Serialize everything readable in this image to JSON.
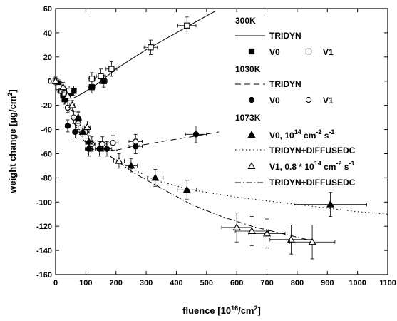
{
  "chart_data": {
    "type": "scatter",
    "title": "",
    "xlabel": "fluence [10^16/cm^2]",
    "ylabel": "weight change [µg/cm^2]",
    "xlim": [
      0,
      1100
    ],
    "ylim": [
      -160,
      60
    ],
    "xticks": [
      0,
      100,
      200,
      300,
      400,
      500,
      600,
      700,
      800,
      900,
      1000,
      1100
    ],
    "yticks": [
      -160,
      -140,
      -120,
      -100,
      -80,
      -60,
      -40,
      -20,
      0,
      20,
      40,
      60
    ],
    "grid": false,
    "legend_position": "right",
    "legend_groups": [
      {
        "heading": "300K",
        "entries": [
          "TRIDYN",
          "V0",
          "V1"
        ]
      },
      {
        "heading": "1030K",
        "entries": [
          "TRIDYN",
          "V0",
          "V1"
        ]
      },
      {
        "heading": "1073K",
        "entries": [
          "V0, 10^14 cm^-2 s^-1",
          "TRIDYN+DIFFUSEDC",
          "V1, 0.8 * 10^14 cm^-2 s^-1",
          "TRIDYN+DIFFUSEDC"
        ]
      }
    ],
    "series": [
      {
        "name": "300K TRIDYN",
        "kind": "line",
        "style": "solid",
        "color": "#000000",
        "points": [
          [
            0,
            0
          ],
          [
            20,
            -8
          ],
          [
            40,
            -14
          ],
          [
            60,
            -14
          ],
          [
            90,
            -10
          ],
          [
            140,
            -2
          ],
          [
            200,
            10
          ],
          [
            300,
            26
          ],
          [
            400,
            40
          ],
          [
            500,
            54
          ],
          [
            530,
            58
          ]
        ]
      },
      {
        "name": "300K V0",
        "kind": "markers",
        "marker": "square-filled",
        "color": "#000000",
        "points": [
          [
            10,
            -2,
            5,
            3
          ],
          [
            20,
            -8,
            6,
            4
          ],
          [
            25,
            -12,
            6,
            4
          ],
          [
            30,
            -15,
            6,
            4
          ],
          [
            35,
            -12,
            6,
            4
          ],
          [
            40,
            -10,
            6,
            4
          ],
          [
            50,
            -10,
            7,
            4
          ],
          [
            60,
            -8,
            8,
            4
          ],
          [
            120,
            -5,
            10,
            5
          ],
          [
            160,
            0,
            12,
            5
          ]
        ]
      },
      {
        "name": "300K V1",
        "kind": "markers",
        "marker": "square-open",
        "color": "#000000",
        "points": [
          [
            0,
            0,
            5,
            3
          ],
          [
            10,
            -5,
            6,
            4
          ],
          [
            20,
            -8,
            6,
            4
          ],
          [
            30,
            -10,
            6,
            4
          ],
          [
            45,
            -8,
            7,
            4
          ],
          [
            120,
            2,
            12,
            5
          ],
          [
            150,
            4,
            15,
            6
          ],
          [
            185,
            10,
            18,
            6
          ],
          [
            315,
            28,
            22,
            6
          ],
          [
            435,
            46,
            30,
            7
          ]
        ]
      },
      {
        "name": "1030K TRIDYN",
        "kind": "line",
        "style": "dashed",
        "color": "#000000",
        "points": [
          [
            0,
            0
          ],
          [
            20,
            -10
          ],
          [
            40,
            -22
          ],
          [
            60,
            -34
          ],
          [
            90,
            -48
          ],
          [
            120,
            -56
          ],
          [
            160,
            -58
          ],
          [
            200,
            -57
          ],
          [
            260,
            -54
          ],
          [
            350,
            -50
          ],
          [
            450,
            -46
          ],
          [
            540,
            -42
          ]
        ]
      },
      {
        "name": "1030K V0",
        "kind": "markers",
        "marker": "circle-filled",
        "color": "#000000",
        "points": [
          [
            40,
            -37,
            8,
            5
          ],
          [
            65,
            -42,
            9,
            5
          ],
          [
            75,
            -31,
            9,
            5
          ],
          [
            110,
            -56,
            12,
            6
          ],
          [
            145,
            -56,
            14,
            6
          ],
          [
            170,
            -56,
            16,
            6
          ],
          [
            265,
            -54,
            22,
            6
          ],
          [
            465,
            -44,
            35,
            7
          ]
        ]
      },
      {
        "name": "1030K V1",
        "kind": "markers",
        "marker": "circle-open",
        "color": "#000000",
        "points": [
          [
            40,
            -22,
            7,
            4
          ],
          [
            60,
            -30,
            8,
            5
          ],
          [
            75,
            -35,
            9,
            5
          ],
          [
            100,
            -42,
            11,
            5
          ],
          [
            120,
            -52,
            12,
            6
          ],
          [
            155,
            -52,
            14,
            6
          ],
          [
            190,
            -51,
            17,
            6
          ],
          [
            265,
            -50,
            22,
            6
          ]
        ]
      },
      {
        "name": "1073K V0, 10^14 cm^-2 s^-1",
        "kind": "markers",
        "marker": "triangle-filled",
        "color": "#000000",
        "points": [
          [
            75,
            -30,
            8,
            5
          ],
          [
            90,
            -42,
            10,
            5
          ],
          [
            110,
            -50,
            11,
            5
          ],
          [
            250,
            -70,
            20,
            6
          ],
          [
            330,
            -80,
            26,
            7
          ],
          [
            435,
            -90,
            32,
            8
          ],
          [
            910,
            -102,
            120,
            10
          ]
        ]
      },
      {
        "name": "1073K TRIDYN+DIFFUSEDC (V0)",
        "kind": "line",
        "style": "dotted",
        "color": "#000000",
        "points": [
          [
            180,
            -62
          ],
          [
            250,
            -72
          ],
          [
            330,
            -82
          ],
          [
            450,
            -90
          ],
          [
            600,
            -96
          ],
          [
            800,
            -102
          ],
          [
            1000,
            -108
          ],
          [
            1100,
            -110
          ]
        ]
      },
      {
        "name": "1073K V1, 0.8 * 10^14 cm^-2 s^-1",
        "kind": "markers",
        "marker": "triangle-open",
        "color": "#000000",
        "points": [
          [
            0,
            0,
            5,
            4
          ],
          [
            25,
            -5,
            6,
            4
          ],
          [
            40,
            -12,
            7,
            4
          ],
          [
            55,
            -20,
            8,
            4
          ],
          [
            105,
            -38,
            10,
            5
          ],
          [
            210,
            -66,
            18,
            6
          ],
          [
            600,
            -121,
            50,
            12
          ],
          [
            650,
            -124,
            55,
            12
          ],
          [
            700,
            -126,
            60,
            12
          ],
          [
            780,
            -131,
            70,
            12
          ],
          [
            850,
            -133,
            75,
            14
          ]
        ]
      },
      {
        "name": "1073K TRIDYN+DIFFUSEDC (V1)",
        "kind": "line",
        "style": "dashdot",
        "color": "#000000",
        "points": [
          [
            180,
            -62
          ],
          [
            260,
            -76
          ],
          [
            360,
            -90
          ],
          [
            450,
            -102
          ],
          [
            550,
            -112
          ],
          [
            650,
            -120
          ],
          [
            750,
            -126
          ],
          [
            850,
            -132
          ]
        ]
      }
    ]
  }
}
